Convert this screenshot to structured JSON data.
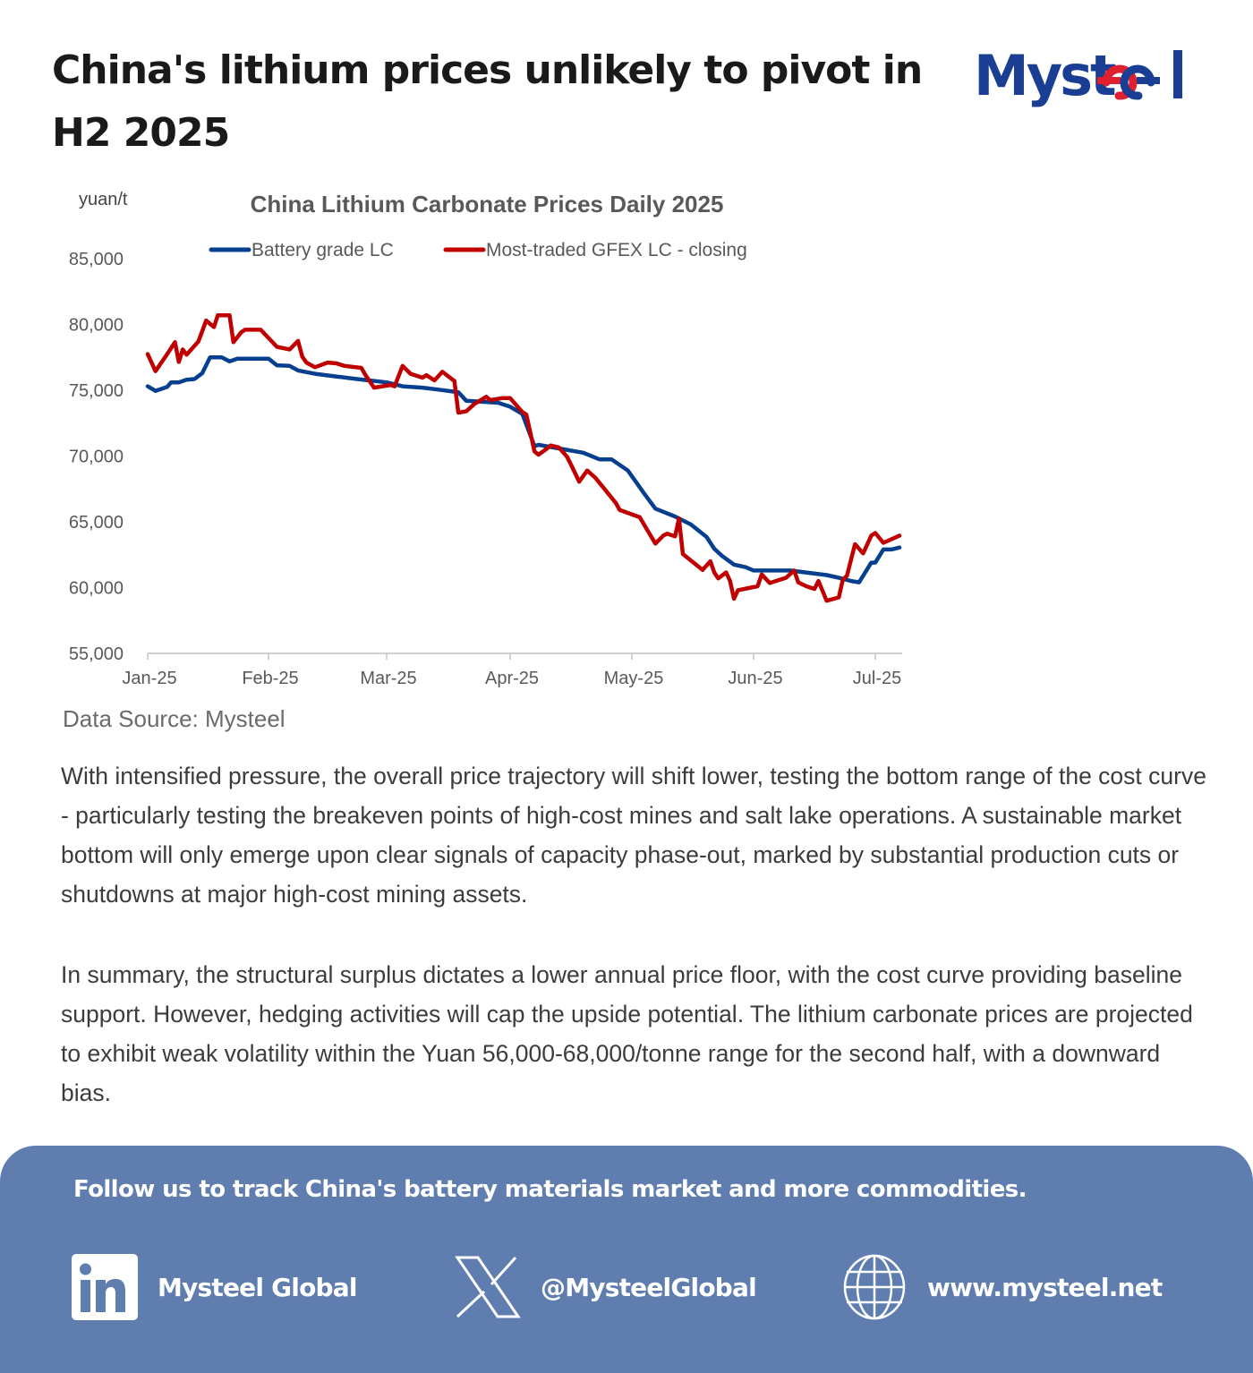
{
  "header": {
    "title": "China's lithium prices unlikely to pivot in H2 2025",
    "logo_text": "Mysteel"
  },
  "colors": {
    "battery_grade": "#063f8f",
    "gfex": "#c00000",
    "footer_bg": "#5f7eaf",
    "logo_blue": "#1a3e94",
    "logo_red": "#e0202e"
  },
  "chart_data": {
    "type": "line",
    "title": "China Lithium Carbonate Prices Daily 2025",
    "ylabel": "yuan/t",
    "xlabel": "",
    "ylim": [
      55000,
      85000
    ],
    "yticks": [
      55000,
      60000,
      65000,
      70000,
      75000,
      80000,
      85000
    ],
    "ytick_labels": [
      "55,000",
      "60,000",
      "65,000",
      "70,000",
      "75,000",
      "80,000",
      "85,000"
    ],
    "x_unit": "day of 2025 (0 = 1 Jan)",
    "xlim": [
      0,
      187
    ],
    "xticks": [
      0,
      31,
      59,
      90,
      120,
      151,
      181
    ],
    "xtick_labels": [
      "Jan-25",
      "Feb-25",
      "Mar-25",
      "Apr-25",
      "May-25",
      "Jun-25",
      "Jul-25"
    ],
    "grid": false,
    "legend": "top-center",
    "series": [
      {
        "name": "Battery grade LC",
        "color": "#063f8f",
        "x": [
          0,
          2,
          5,
          6,
          8,
          10,
          12,
          14,
          16,
          19,
          21,
          23,
          31,
          33,
          36,
          38,
          42,
          47,
          52,
          59,
          63,
          68,
          72,
          77,
          79,
          87,
          90,
          93,
          96,
          97,
          108,
          112,
          115,
          119,
          121,
          123,
          126,
          131,
          135,
          139,
          141,
          143,
          146,
          149,
          151,
          160,
          169,
          172,
          175,
          177,
          180,
          181,
          183,
          185,
          187
        ],
        "y": [
          75300,
          74950,
          75250,
          75600,
          75600,
          75800,
          75850,
          76300,
          77500,
          77500,
          77200,
          77400,
          77400,
          76900,
          76850,
          76500,
          76250,
          76050,
          75850,
          75600,
          75300,
          75200,
          75050,
          74850,
          74200,
          74050,
          73750,
          73200,
          70750,
          70850,
          70250,
          69750,
          69750,
          68900,
          68050,
          67200,
          66000,
          65400,
          64800,
          63850,
          62950,
          62400,
          61750,
          61550,
          61300,
          61300,
          60950,
          60750,
          60500,
          60400,
          61900,
          61900,
          62900,
          62900,
          63050
        ]
      },
      {
        "name": "Most-traded GFEX LC - closing",
        "color": "#c00000",
        "x": [
          0,
          2,
          5,
          7,
          8,
          9,
          10,
          13,
          14,
          15,
          17,
          18,
          21,
          22,
          24,
          25,
          29,
          33,
          36,
          38,
          39,
          40,
          42,
          45,
          47,
          49,
          53,
          54,
          56,
          60,
          61,
          63,
          65,
          66,
          68,
          69,
          71,
          73,
          76,
          77,
          79,
          81,
          84,
          85,
          88,
          90,
          93,
          94,
          96,
          97,
          99,
          100,
          102,
          104,
          105,
          107,
          109,
          111,
          116,
          117,
          122,
          124,
          126,
          128,
          129,
          131,
          132,
          133,
          138,
          140,
          141,
          142,
          144,
          145,
          146,
          147,
          152,
          153,
          155,
          159,
          161,
          162,
          164,
          166,
          167,
          169,
          172,
          173,
          174,
          176,
          178,
          180,
          181,
          183,
          187
        ],
        "y": [
          77750,
          76450,
          77750,
          78650,
          77150,
          78100,
          77700,
          78700,
          79500,
          80300,
          79800,
          80700,
          80700,
          78650,
          79400,
          79600,
          79600,
          78300,
          78100,
          78750,
          77550,
          77100,
          76750,
          77100,
          77050,
          76850,
          76700,
          76150,
          75200,
          75400,
          75300,
          76850,
          76250,
          76150,
          75950,
          76150,
          75750,
          76400,
          75700,
          73300,
          73400,
          73950,
          74500,
          74250,
          74400,
          74400,
          73350,
          73150,
          70350,
          70100,
          70550,
          70800,
          70650,
          69950,
          69350,
          68050,
          68900,
          68350,
          66450,
          65900,
          65350,
          64350,
          63350,
          63950,
          64100,
          63900,
          65250,
          62550,
          61350,
          62000,
          61150,
          60700,
          61150,
          60500,
          59150,
          59800,
          60100,
          61000,
          60350,
          60750,
          61300,
          60400,
          60100,
          59900,
          60500,
          59000,
          59250,
          60600,
          60900,
          63300,
          62600,
          63950,
          64150,
          63400,
          63950
        ]
      }
    ]
  },
  "source": "Data Source: Mysteel",
  "body": {
    "paragraph1": "With intensified pressure, the overall price trajectory will shift lower, testing the bottom range of the cost curve - particularly testing the breakeven points of high-cost mines and salt lake operations. A sustainable market bottom will only emerge upon clear signals of capacity phase-out, marked by substantial production cuts or shutdowns at major high-cost mining assets.",
    "paragraph2": "In summary, the structural surplus dictates a lower annual price floor, with the cost curve providing baseline support. However, hedging activities will cap the upside potential. The lithium carbonate prices are projected to exhibit weak volatility within the Yuan 56,000-68,000/tonne range for the second half, with a downward bias."
  },
  "footer": {
    "cta": "Follow us to track China's battery materials market and more commodities.",
    "links": [
      {
        "icon": "linkedin-icon",
        "label": "Mysteel Global"
      },
      {
        "icon": "x-icon",
        "label": "@MysteelGlobal"
      },
      {
        "icon": "globe-icon",
        "label": "www.mysteel.net"
      }
    ]
  }
}
